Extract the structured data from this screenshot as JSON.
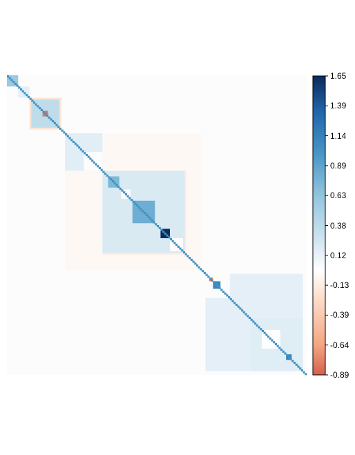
{
  "chart_data": {
    "type": "heatmap",
    "title": "",
    "xlabel": "",
    "ylabel": "",
    "grid": false,
    "legend": "right",
    "color_scale": {
      "range": [
        -0.89,
        1.65
      ],
      "ticks": [
        "1.65",
        "1.39",
        "1.14",
        "0.89",
        "0.63",
        "0.38",
        "0.12",
        "-0.13",
        "-0.39",
        "-0.64",
        "-0.89"
      ],
      "colors": {
        "max": "#0b2a5b",
        "high": "#2166ac",
        "mid_high": "#4393c3",
        "low_pos": "#92c5de",
        "near_zero": "#f7f7f7",
        "low_neg": "#fddbc7",
        "min": "#d6604d"
      }
    },
    "matrix_size": 160,
    "diagonal_value": 0.9,
    "background_value": 0.02,
    "blocks": [
      {
        "from": 0,
        "to": 6,
        "value": 0.6
      },
      {
        "from": 6,
        "to": 12,
        "value": 0.2
      },
      {
        "from": 12,
        "to": 29,
        "value": -0.3
      },
      {
        "from": 13,
        "to": 28,
        "value": 0.45
      },
      {
        "from": 19,
        "to": 22,
        "value": -0.8
      },
      {
        "from": 31,
        "to": 104,
        "value": -0.08
      },
      {
        "from": 31,
        "to": 51,
        "value": 0.22
      },
      {
        "from": 41,
        "to": 51,
        "value": 0.02
      },
      {
        "from": 51,
        "to": 96,
        "value": -0.2
      },
      {
        "from": 51,
        "to": 95,
        "value": 0.3
      },
      {
        "from": 54,
        "to": 60,
        "value": 0.7
      },
      {
        "from": 61,
        "to": 66,
        "value": 0.02
      },
      {
        "from": 67,
        "to": 79,
        "value": 0.75
      },
      {
        "from": 82,
        "to": 87,
        "value": 1.65
      },
      {
        "from": 87,
        "to": 94,
        "value": 0.02
      },
      {
        "from": 106,
        "to": 158,
        "value": 0.2
      },
      {
        "from": 106,
        "to": 119,
        "value": 0.02
      },
      {
        "from": 108,
        "to": 110,
        "value": -0.8
      },
      {
        "from": 110,
        "to": 114,
        "value": 0.95
      },
      {
        "from": 130,
        "to": 158,
        "value": 0.25
      },
      {
        "from": 136,
        "to": 146,
        "value": 0.05
      },
      {
        "from": 149,
        "to": 152,
        "value": 0.95
      },
      {
        "from": 150,
        "to": 151,
        "value": 1.65
      }
    ]
  }
}
